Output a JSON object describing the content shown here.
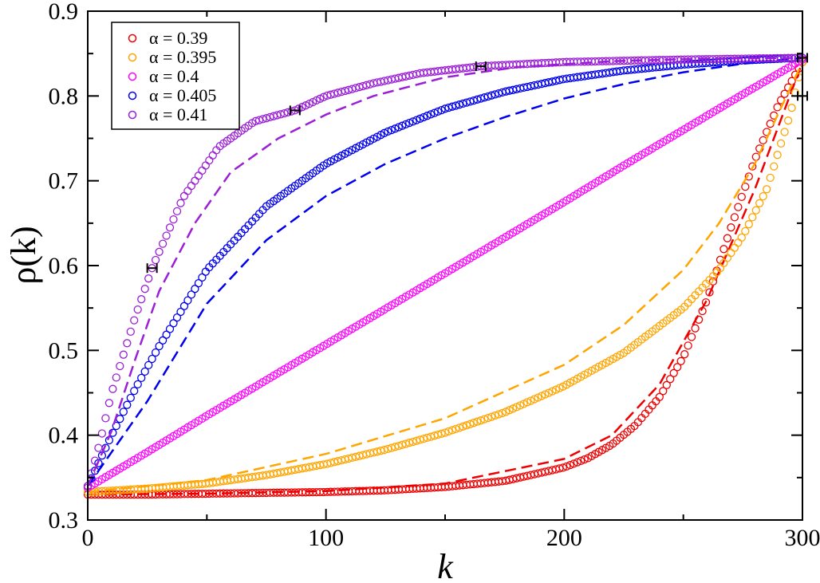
{
  "chart_data": {
    "type": "scatter",
    "title": "",
    "xlabel": "k",
    "ylabel": "ρ(k)",
    "xlim": [
      0,
      300
    ],
    "ylim": [
      0.3,
      0.9
    ],
    "x_ticks": [
      "0",
      "100",
      "200",
      "300"
    ],
    "y_ticks": [
      "0.3",
      "0.4",
      "0.5",
      "0.6",
      "0.7",
      "0.8",
      "0.9"
    ],
    "grid": false,
    "legend_position": "top-left",
    "series": [
      {
        "name": "α = 0.39",
        "color": "#ee0000",
        "marker": "open-circle",
        "points": [
          [
            0,
            0.33
          ],
          [
            25,
            0.33
          ],
          [
            50,
            0.331
          ],
          [
            75,
            0.332
          ],
          [
            100,
            0.333
          ],
          [
            125,
            0.335
          ],
          [
            150,
            0.339
          ],
          [
            175,
            0.346
          ],
          [
            200,
            0.362
          ],
          [
            210,
            0.373
          ],
          [
            220,
            0.389
          ],
          [
            230,
            0.412
          ],
          [
            240,
            0.445
          ],
          [
            250,
            0.492
          ],
          [
            260,
            0.56
          ],
          [
            270,
            0.645
          ],
          [
            280,
            0.725
          ],
          [
            290,
            0.79
          ],
          [
            300,
            0.84
          ]
        ],
        "fit": [
          [
            0,
            0.33
          ],
          [
            50,
            0.331
          ],
          [
            100,
            0.334
          ],
          [
            150,
            0.343
          ],
          [
            200,
            0.372
          ],
          [
            220,
            0.4
          ],
          [
            240,
            0.46
          ],
          [
            260,
            0.56
          ],
          [
            280,
            0.69
          ],
          [
            300,
            0.84
          ]
        ]
      },
      {
        "name": "α = 0.395",
        "color": "#ffa500",
        "marker": "open-circle",
        "points": [
          [
            0,
            0.333
          ],
          [
            25,
            0.337
          ],
          [
            50,
            0.343
          ],
          [
            75,
            0.353
          ],
          [
            100,
            0.366
          ],
          [
            125,
            0.383
          ],
          [
            150,
            0.403
          ],
          [
            175,
            0.427
          ],
          [
            200,
            0.458
          ],
          [
            225,
            0.497
          ],
          [
            250,
            0.55
          ],
          [
            265,
            0.595
          ],
          [
            275,
            0.635
          ],
          [
            285,
            0.69
          ],
          [
            295,
            0.78
          ],
          [
            300,
            0.84
          ]
        ],
        "fit": [
          [
            0,
            0.333
          ],
          [
            50,
            0.347
          ],
          [
            100,
            0.378
          ],
          [
            150,
            0.42
          ],
          [
            200,
            0.483
          ],
          [
            225,
            0.53
          ],
          [
            250,
            0.595
          ],
          [
            265,
            0.65
          ],
          [
            280,
            0.72
          ],
          [
            290,
            0.78
          ],
          [
            300,
            0.84
          ]
        ]
      },
      {
        "name": "α = 0.4",
        "color": "#ff00ff",
        "marker": "open-circle",
        "points": [
          [
            0,
            0.338
          ],
          [
            25,
            0.38
          ],
          [
            50,
            0.423
          ],
          [
            75,
            0.465
          ],
          [
            100,
            0.507
          ],
          [
            125,
            0.549
          ],
          [
            150,
            0.591
          ],
          [
            175,
            0.633
          ],
          [
            200,
            0.675
          ],
          [
            225,
            0.718
          ],
          [
            250,
            0.76
          ],
          [
            275,
            0.802
          ],
          [
            300,
            0.843
          ]
        ],
        "fit": []
      },
      {
        "name": "α = 0.405",
        "color": "#0000ee",
        "marker": "open-circle",
        "points": [
          [
            0,
            0.34
          ],
          [
            10,
            0.4
          ],
          [
            20,
            0.455
          ],
          [
            30,
            0.505
          ],
          [
            40,
            0.55
          ],
          [
            50,
            0.595
          ],
          [
            75,
            0.67
          ],
          [
            100,
            0.72
          ],
          [
            125,
            0.757
          ],
          [
            150,
            0.785
          ],
          [
            175,
            0.805
          ],
          [
            200,
            0.82
          ],
          [
            225,
            0.83
          ],
          [
            250,
            0.837
          ],
          [
            275,
            0.842
          ],
          [
            300,
            0.845
          ]
        ],
        "fit": [
          [
            0,
            0.34
          ],
          [
            25,
            0.44
          ],
          [
            50,
            0.555
          ],
          [
            75,
            0.63
          ],
          [
            100,
            0.682
          ],
          [
            125,
            0.72
          ],
          [
            150,
            0.75
          ],
          [
            175,
            0.775
          ],
          [
            200,
            0.797
          ],
          [
            225,
            0.814
          ],
          [
            250,
            0.828
          ],
          [
            275,
            0.838
          ],
          [
            300,
            0.845
          ]
        ]
      },
      {
        "name": "α = 0.41",
        "color": "#9b1fd6",
        "marker": "open-circle",
        "points": [
          [
            0,
            0.34
          ],
          [
            5,
            0.39
          ],
          [
            10,
            0.45
          ],
          [
            20,
            0.54
          ],
          [
            27,
            0.597
          ],
          [
            40,
            0.68
          ],
          [
            55,
            0.74
          ],
          [
            70,
            0.77
          ],
          [
            87,
            0.783
          ],
          [
            100,
            0.8
          ],
          [
            120,
            0.815
          ],
          [
            140,
            0.827
          ],
          [
            165,
            0.835
          ],
          [
            200,
            0.84
          ],
          [
            250,
            0.843
          ],
          [
            300,
            0.845
          ]
        ],
        "fit": [
          [
            0,
            0.34
          ],
          [
            10,
            0.405
          ],
          [
            20,
            0.49
          ],
          [
            30,
            0.57
          ],
          [
            45,
            0.65
          ],
          [
            60,
            0.71
          ],
          [
            80,
            0.75
          ],
          [
            100,
            0.778
          ],
          [
            120,
            0.8
          ],
          [
            150,
            0.822
          ],
          [
            180,
            0.834
          ],
          [
            220,
            0.841
          ],
          [
            260,
            0.844
          ],
          [
            300,
            0.845
          ]
        ]
      }
    ],
    "error_bars": [
      {
        "x": 27,
        "y": 0.597
      },
      {
        "x": 87,
        "y": 0.783
      },
      {
        "x": 165,
        "y": 0.835
      },
      {
        "x": 300,
        "y": 0.845
      },
      {
        "x": 300,
        "y": 0.8
      }
    ]
  }
}
